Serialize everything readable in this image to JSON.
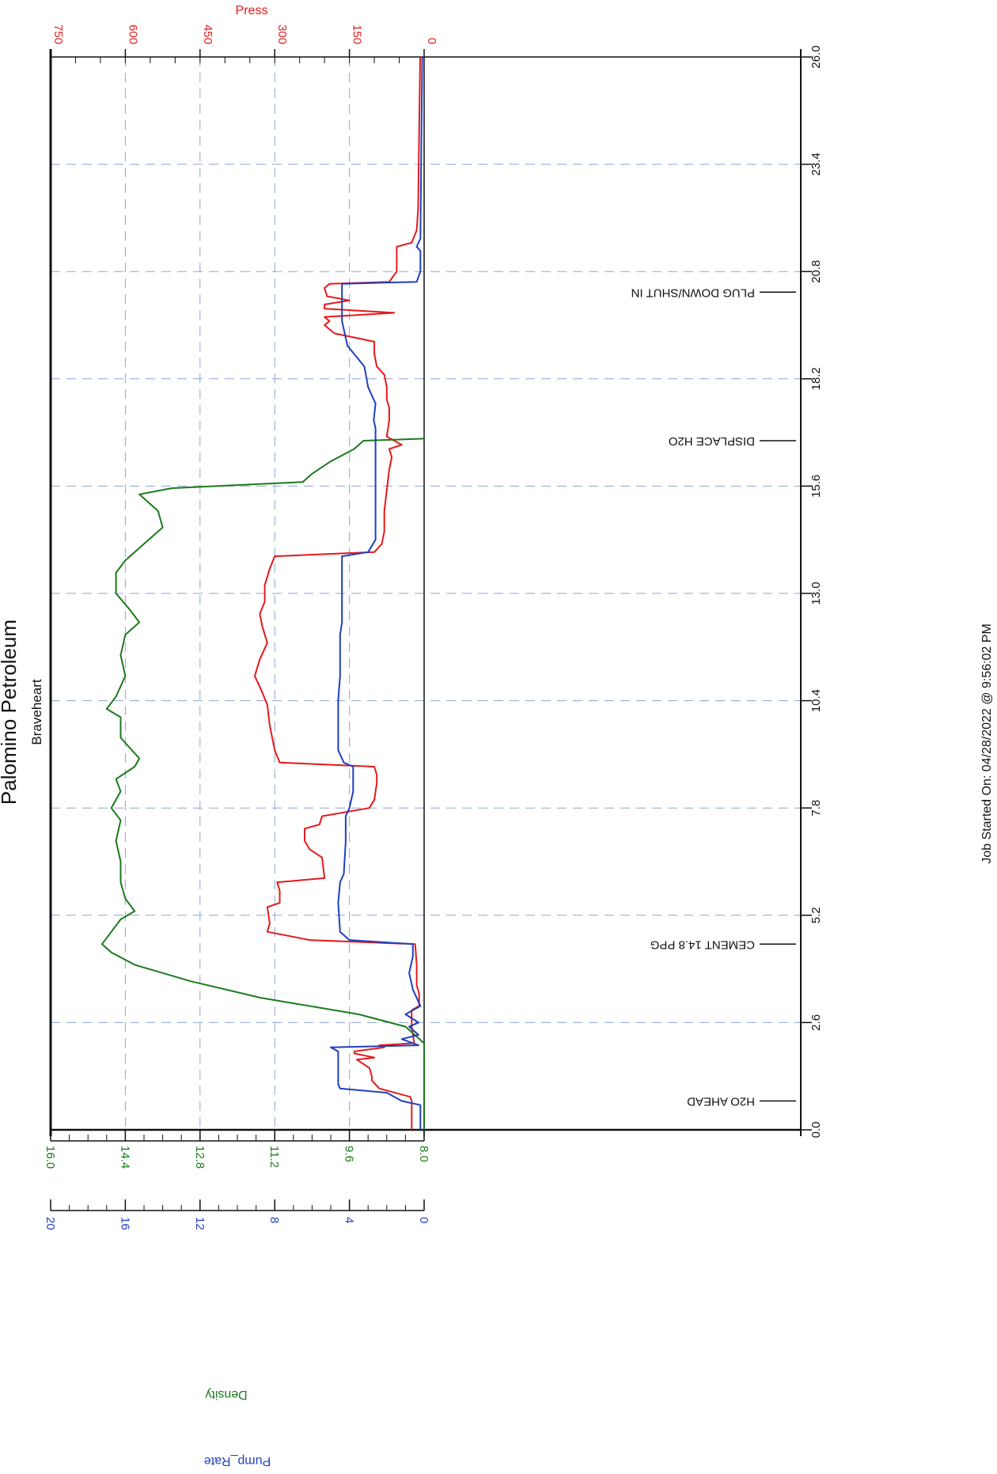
{
  "chart_data": {
    "type": "line",
    "title": "Palomino Petroleum",
    "subtitle": "Braveheart",
    "footer": "Job Started On: 04/28/2022 @ 9:56:02 PM",
    "x_axis": {
      "ticks": [
        "0.0",
        "2.6",
        "5.2",
        "7.8",
        "10.4",
        "13.0",
        "15.6",
        "18.2",
        "20.8",
        "23.4",
        "26.0"
      ],
      "range": [
        0,
        26
      ]
    },
    "press_axis": {
      "label": "Press",
      "color": "#e31a1c",
      "ticks": [
        "0",
        "150",
        "300",
        "450",
        "600",
        "750"
      ],
      "range": [
        0,
        750
      ]
    },
    "density_axis": {
      "label": "Density",
      "color": "#1b7a1b",
      "ticks": [
        "8.0",
        "9.6",
        "11.2",
        "12.8",
        "14.4",
        "16.0"
      ],
      "range": [
        8,
        16
      ]
    },
    "rate_axis": {
      "label": "Pump_Rate",
      "color": "#1f3fbf",
      "ticks": [
        "0",
        "4",
        "8",
        "12",
        "16",
        "20"
      ],
      "range": [
        0,
        20
      ]
    },
    "events": [
      {
        "label": "H2O AHEAD",
        "x": 0.7
      },
      {
        "label": "CEMENT 14.8 PPG",
        "x": 4.5
      },
      {
        "label": "DISPLACE H2O",
        "x": 16.7
      },
      {
        "label": "PLUG DOWN/SHUT IN",
        "x": 20.3
      }
    ],
    "series": [
      {
        "name": "Press",
        "axis": "press",
        "color": "#e31a1c",
        "points": [
          [
            0,
            25
          ],
          [
            0.7,
            25
          ],
          [
            0.8,
            28
          ],
          [
            1.0,
            90
          ],
          [
            1.2,
            105
          ],
          [
            1.3,
            105
          ],
          [
            1.5,
            110
          ],
          [
            1.7,
            135
          ],
          [
            1.75,
            100
          ],
          [
            1.85,
            140
          ],
          [
            1.9,
            140
          ],
          [
            2.0,
            80
          ],
          [
            2.05,
            90
          ],
          [
            2.1,
            20
          ],
          [
            2.5,
            25
          ],
          [
            2.9,
            25
          ],
          [
            3.0,
            10
          ],
          [
            3.3,
            10
          ],
          [
            3.5,
            15
          ],
          [
            4.0,
            15
          ],
          [
            4.5,
            18
          ],
          [
            4.6,
            230
          ],
          [
            4.8,
            315
          ],
          [
            5.0,
            310
          ],
          [
            5.4,
            315
          ],
          [
            5.5,
            290
          ],
          [
            5.8,
            290
          ],
          [
            6.0,
            295
          ],
          [
            6.1,
            200
          ],
          [
            6.6,
            205
          ],
          [
            6.8,
            230
          ],
          [
            7.0,
            240
          ],
          [
            7.3,
            240
          ],
          [
            7.4,
            210
          ],
          [
            7.6,
            205
          ],
          [
            7.8,
            110
          ],
          [
            8.0,
            100
          ],
          [
            8.4,
            95
          ],
          [
            8.6,
            95
          ],
          [
            8.8,
            100
          ],
          [
            8.9,
            290
          ],
          [
            9.2,
            300
          ],
          [
            9.8,
            310
          ],
          [
            10.3,
            315
          ],
          [
            10.6,
            325
          ],
          [
            11.0,
            340
          ],
          [
            11.4,
            330
          ],
          [
            11.8,
            315
          ],
          [
            12.2,
            325
          ],
          [
            12.5,
            330
          ],
          [
            12.8,
            320
          ],
          [
            13.2,
            320
          ],
          [
            13.6,
            310
          ],
          [
            13.9,
            300
          ],
          [
            14.0,
            100
          ],
          [
            14.2,
            85
          ],
          [
            14.5,
            80
          ],
          [
            15.0,
            80
          ],
          [
            15.5,
            75
          ],
          [
            16.0,
            70
          ],
          [
            16.3,
            65
          ],
          [
            16.5,
            70
          ],
          [
            16.6,
            45
          ],
          [
            16.8,
            75
          ],
          [
            17.2,
            70
          ],
          [
            17.5,
            70
          ],
          [
            17.7,
            75
          ],
          [
            18.0,
            75
          ],
          [
            18.3,
            80
          ],
          [
            18.5,
            95
          ],
          [
            18.8,
            100
          ],
          [
            19.1,
            100
          ],
          [
            19.3,
            180
          ],
          [
            19.5,
            200
          ],
          [
            19.6,
            190
          ],
          [
            19.7,
            200
          ],
          [
            19.8,
            60
          ],
          [
            19.9,
            200
          ],
          [
            20.0,
            200
          ],
          [
            20.1,
            150
          ],
          [
            20.2,
            195
          ],
          [
            20.4,
            200
          ],
          [
            20.5,
            190
          ],
          [
            20.55,
            70
          ],
          [
            20.8,
            55
          ],
          [
            21.4,
            55
          ],
          [
            21.5,
            25
          ],
          [
            21.8,
            15
          ],
          [
            22.3,
            12
          ],
          [
            26.0,
            8
          ]
        ]
      },
      {
        "name": "Density",
        "axis": "density",
        "color": "#1b7a1b",
        "points": [
          [
            0,
            8.0
          ],
          [
            2.1,
            8.0
          ],
          [
            2.5,
            8.4
          ],
          [
            2.8,
            9.4
          ],
          [
            3.2,
            11.5
          ],
          [
            3.6,
            13.0
          ],
          [
            4.0,
            14.2
          ],
          [
            4.3,
            14.7
          ],
          [
            4.5,
            14.9
          ],
          [
            4.8,
            14.7
          ],
          [
            5.1,
            14.5
          ],
          [
            5.3,
            14.2
          ],
          [
            5.6,
            14.4
          ],
          [
            6.0,
            14.5
          ],
          [
            6.5,
            14.5
          ],
          [
            7.0,
            14.6
          ],
          [
            7.5,
            14.5
          ],
          [
            7.8,
            14.7
          ],
          [
            8.2,
            14.5
          ],
          [
            8.5,
            14.6
          ],
          [
            8.8,
            14.2
          ],
          [
            9.0,
            14.1
          ],
          [
            9.5,
            14.5
          ],
          [
            10.0,
            14.5
          ],
          [
            10.2,
            14.8
          ],
          [
            10.5,
            14.6
          ],
          [
            11.0,
            14.4
          ],
          [
            11.5,
            14.5
          ],
          [
            12.0,
            14.4
          ],
          [
            12.3,
            14.1
          ],
          [
            12.6,
            14.3
          ],
          [
            13.0,
            14.6
          ],
          [
            13.5,
            14.6
          ],
          [
            13.8,
            14.4
          ],
          [
            14.2,
            14.0
          ],
          [
            14.6,
            13.6
          ],
          [
            15.0,
            13.7
          ],
          [
            15.4,
            14.1
          ],
          [
            15.55,
            13.4
          ],
          [
            15.7,
            10.6
          ],
          [
            15.9,
            10.4
          ],
          [
            16.2,
            10.0
          ],
          [
            16.5,
            9.5
          ],
          [
            16.7,
            9.3
          ],
          [
            16.75,
            8.0
          ]
        ]
      },
      {
        "name": "Pump_Rate",
        "axis": "rate",
        "color": "#1f3fbf",
        "points": [
          [
            0,
            0.2
          ],
          [
            0.6,
            0.2
          ],
          [
            0.7,
            1.2
          ],
          [
            0.9,
            2.0
          ],
          [
            1.0,
            4.5
          ],
          [
            1.1,
            4.6
          ],
          [
            1.9,
            4.6
          ],
          [
            2.0,
            5.0
          ],
          [
            2.05,
            0.3
          ],
          [
            2.2,
            1.2
          ],
          [
            2.3,
            0.3
          ],
          [
            2.5,
            0.8
          ],
          [
            2.6,
            0.3
          ],
          [
            2.8,
            1.0
          ],
          [
            3.0,
            0.2
          ],
          [
            3.4,
            0.6
          ],
          [
            3.8,
            0.8
          ],
          [
            4.2,
            0.6
          ],
          [
            4.5,
            0.6
          ],
          [
            4.6,
            4.0
          ],
          [
            4.8,
            4.5
          ],
          [
            5.5,
            4.6
          ],
          [
            6.0,
            4.5
          ],
          [
            6.2,
            4.3
          ],
          [
            7.0,
            4.2
          ],
          [
            7.6,
            4.2
          ],
          [
            7.8,
            4.0
          ],
          [
            8.2,
            3.8
          ],
          [
            8.6,
            3.8
          ],
          [
            8.8,
            3.8
          ],
          [
            8.9,
            4.3
          ],
          [
            9.2,
            4.6
          ],
          [
            10.4,
            4.6
          ],
          [
            11.0,
            4.5
          ],
          [
            12.0,
            4.5
          ],
          [
            12.3,
            4.4
          ],
          [
            13.9,
            4.4
          ],
          [
            14.0,
            3.0
          ],
          [
            14.3,
            2.6
          ],
          [
            16.5,
            2.6
          ],
          [
            17.0,
            2.6
          ],
          [
            17.2,
            2.7
          ],
          [
            17.6,
            2.6
          ],
          [
            18.0,
            3.0
          ],
          [
            18.5,
            3.2
          ],
          [
            19.0,
            4.1
          ],
          [
            19.6,
            4.4
          ],
          [
            20.5,
            4.4
          ],
          [
            20.55,
            0.4
          ],
          [
            20.8,
            0.2
          ],
          [
            21.3,
            0.2
          ],
          [
            21.4,
            0.4
          ],
          [
            21.6,
            0.2
          ],
          [
            26.0,
            0.1
          ]
        ]
      }
    ]
  }
}
